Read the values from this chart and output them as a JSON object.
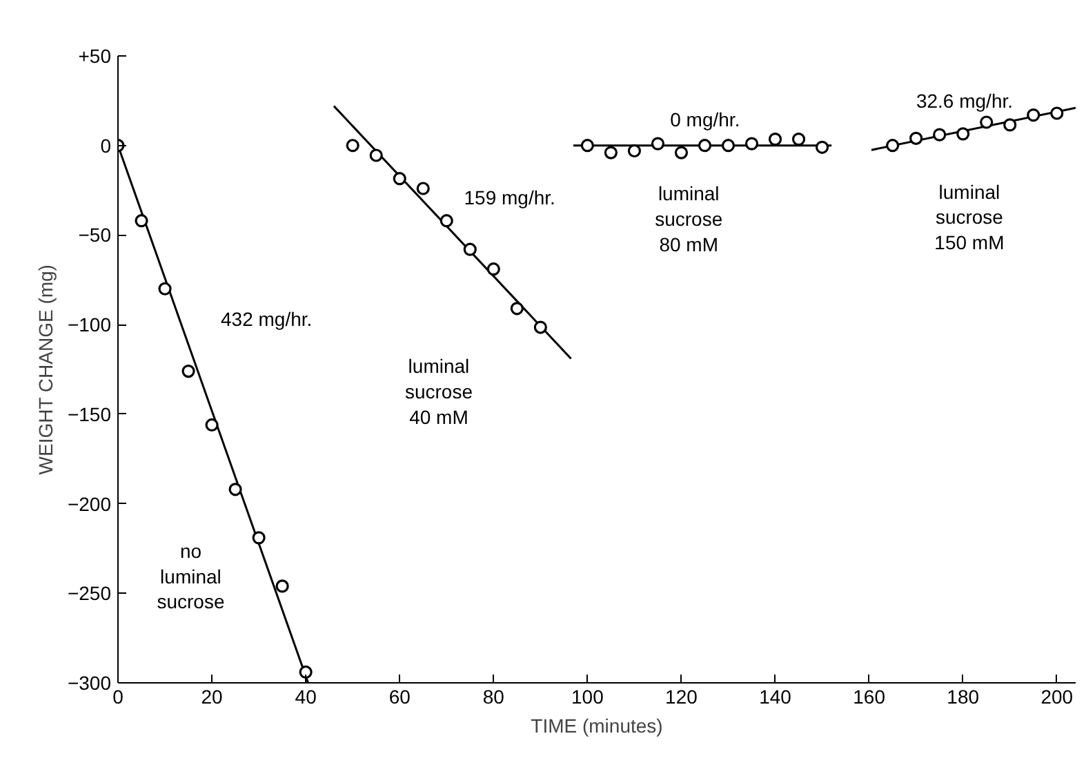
{
  "chart_data": {
    "type": "scatter",
    "xlabel": "TIME (minutes)",
    "ylabel": "WEIGHT CHANGE (mg)",
    "xlim": [
      0,
      204
    ],
    "ylim": [
      -300,
      50
    ],
    "xticks": [
      0,
      20,
      40,
      60,
      80,
      100,
      120,
      140,
      160,
      180,
      200
    ],
    "yticks": [
      {
        "value": 50,
        "label": "+50"
      },
      0,
      -50,
      -100,
      -150,
      -200,
      -250,
      -300
    ],
    "grid": false,
    "marker": "circle",
    "series": [
      {
        "color": "#000000",
        "x": [
          0,
          5,
          10,
          15,
          20,
          25,
          30,
          35,
          40
        ],
        "values": [
          0,
          -42,
          -80,
          -126,
          -156,
          -192,
          -219,
          -246,
          -294
        ]
      },
      {
        "color": "#000000",
        "x": [
          50,
          55,
          60,
          65,
          70,
          75,
          80,
          85,
          90
        ],
        "values": [
          0,
          -5.5,
          -18.5,
          -24,
          -42,
          -58,
          -69,
          -91,
          -101.5
        ]
      },
      {
        "color": "#000000",
        "x": [
          100,
          105,
          110,
          115,
          120,
          125,
          130,
          135,
          140,
          145,
          150
        ],
        "values": [
          0,
          -4,
          -3,
          1,
          -4,
          0,
          0,
          1,
          3.5,
          3.5,
          -1
        ]
      },
      {
        "color": "#000000",
        "x": [
          165,
          170,
          175,
          180,
          185,
          190,
          195,
          200
        ],
        "values": [
          0,
          4,
          6,
          6.5,
          13,
          11.5,
          17,
          18
        ]
      },
      {
        "type": "line",
        "marker": "none",
        "color": "#000000",
        "x": [
          0,
          40.5
        ],
        "values": [
          0,
          -300
        ]
      },
      {
        "type": "line",
        "marker": "none",
        "color": "#000000",
        "x": [
          46,
          96.5
        ],
        "values": [
          22,
          -119
        ]
      },
      {
        "type": "line",
        "marker": "none",
        "color": "#000000",
        "x": [
          97,
          152
        ],
        "values": [
          0,
          0
        ]
      },
      {
        "type": "line",
        "marker": "none",
        "color": "#000000",
        "x": [
          160.5,
          204
        ],
        "values": [
          -2.5,
          21
        ]
      }
    ],
    "annotations": [
      "432 mg/hr.",
      "no\nluminal\nsucrose",
      "159 mg/hr.",
      "luminal\nsucrose\n40 mM",
      "0 mg/hr.",
      "luminal\nsucrose\n80 mM",
      "32.6 mg/hr.",
      "luminal\nsucrose\n150 mM"
    ]
  }
}
